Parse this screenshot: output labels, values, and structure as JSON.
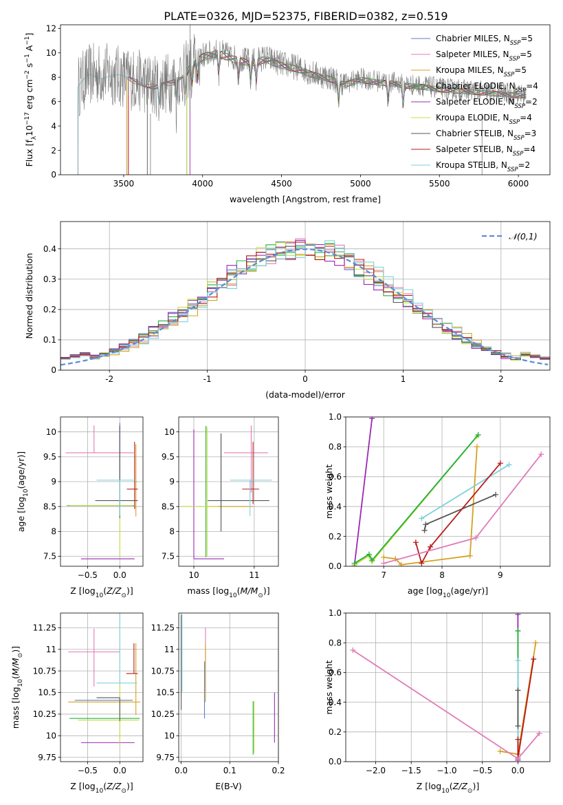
{
  "figure_title": "PLATE=0326, MJD=52375, FIBERID=0382, z=0.519",
  "model_colors": [
    "#5b7fc2",
    "#e07ab8",
    "#d4a020",
    "#20b040",
    "#9a28b4",
    "#cadc40",
    "#555555",
    "#b81a1a",
    "#7ed0dc"
  ],
  "models": [
    {
      "name": "Chabrier MILES",
      "nssp": "5"
    },
    {
      "name": "Salpeter MILES",
      "nssp": "5"
    },
    {
      "name": "Kroupa MILES",
      "nssp": "5"
    },
    {
      "name": "Chabrier ELODIE",
      "nssp": "4"
    },
    {
      "name": "Salpeter ELODIE",
      "nssp": "2"
    },
    {
      "name": "Kroupa ELODIE",
      "nssp": "4"
    },
    {
      "name": "Chabrier STELIB",
      "nssp": "3"
    },
    {
      "name": "Salpeter STELIB",
      "nssp": "4"
    },
    {
      "name": "Kroupa STELIB",
      "nssp": "2"
    }
  ],
  "chart_data": [
    {
      "id": "spectrum",
      "type": "line",
      "xlabel": "wavelength [Angstrom, rest frame]",
      "ylabel": "Flux [f_λ10^-17 erg cm^-2 s^-1 A^-1]",
      "xlim": [
        3100,
        6200
      ],
      "ylim": [
        0,
        12.3
      ],
      "xticks": [
        3500,
        4000,
        4500,
        5000,
        5500,
        6000
      ],
      "yticks": [
        0,
        2,
        4,
        6,
        8,
        10,
        12
      ],
      "legend": "top-right",
      "continuum": [
        [
          3210,
          7.2
        ],
        [
          3280,
          8.2
        ],
        [
          3400,
          8.3
        ],
        [
          3500,
          8.0
        ],
        [
          3600,
          7.7
        ],
        [
          3700,
          7.3
        ],
        [
          3800,
          7.6
        ],
        [
          3900,
          8.6
        ],
        [
          3950,
          9.3
        ],
        [
          4000,
          9.8
        ],
        [
          4100,
          10.1
        ],
        [
          4200,
          9.6
        ],
        [
          4300,
          9.3
        ],
        [
          4400,
          9.6
        ],
        [
          4500,
          9.1
        ],
        [
          4600,
          8.8
        ],
        [
          4700,
          8.3
        ],
        [
          4800,
          8.0
        ],
        [
          4900,
          7.5
        ],
        [
          5000,
          7.9
        ],
        [
          5100,
          7.7
        ],
        [
          5200,
          7.6
        ],
        [
          5300,
          7.4
        ],
        [
          5400,
          7.3
        ],
        [
          5500,
          7.1
        ],
        [
          5600,
          7.0
        ],
        [
          5700,
          6.9
        ],
        [
          5800,
          6.8
        ],
        [
          5900,
          6.7
        ],
        [
          6000,
          6.6
        ],
        [
          6050,
          6.5
        ]
      ],
      "model_starts": [
        3520,
        3530,
        3520,
        3900,
        3920,
        3900,
        3650,
        3530,
        3210
      ]
    },
    {
      "id": "residuals",
      "type": "step",
      "xlabel": "(data-model)/error",
      "ylabel": "Normed distribution",
      "xlim": [
        -2.5,
        2.5
      ],
      "ylim": [
        0,
        0.49
      ],
      "xticks": [
        -2,
        -1,
        0,
        1,
        2
      ],
      "yticks": [
        0,
        0.1,
        0.2,
        0.3,
        0.4
      ],
      "grid": true,
      "legend": "top-right",
      "reference_label": "𝒩(0,1)",
      "reference_color": "#5b8ed6",
      "bin_width": 0.1,
      "reference_curve": "normal(0,1)"
    },
    {
      "id": "age_vs_Z",
      "type": "errorbar",
      "xlabel": "Z [log10(Z/Z⊙)]",
      "ylabel": "age [log10(age/yr)]",
      "xlim": [
        -0.92,
        0.36
      ],
      "ylim": [
        7.3,
        10.3
      ],
      "xticks": [
        -0.5,
        0,
        0.5
      ],
      "xticklabels": [
        "−0.5",
        "0.0",
        ""
      ],
      "yticks": [
        7.5,
        8.0,
        8.5,
        9.0,
        9.5,
        10.0
      ],
      "grid": true,
      "points": [
        {
          "x": 0.0,
          "y": 9.03,
          "xerr": [
            0.0,
            0.0
          ],
          "yerr": [
            0.0,
            1.15
          ],
          "c": 0
        },
        {
          "x": -0.4,
          "y": 9.58,
          "xerr": [
            0.44,
            0.62
          ],
          "yerr": [
            0.0,
            0.55
          ],
          "c": 1
        },
        {
          "x": 0.25,
          "y": 9.0,
          "xerr": [
            0.02,
            0.02
          ],
          "yerr": [
            0.7,
            0.75
          ],
          "c": 2
        },
        {
          "x": -0.6,
          "y": 8.52,
          "xerr": [
            0.22,
            0.82
          ],
          "yerr": [
            0.0,
            0.0
          ],
          "c": 3
        },
        {
          "x": -0.2,
          "y": 7.45,
          "xerr": [
            0.4,
            0.43
          ],
          "yerr": [
            0.0,
            0.0
          ],
          "c": 4
        },
        {
          "x": 0.0,
          "y": 8.52,
          "xerr": [
            0.78,
            0.2
          ],
          "yerr": [
            1.0,
            0.0
          ],
          "c": 5
        },
        {
          "x": 0.0,
          "y": 8.62,
          "xerr": [
            0.38,
            0.28
          ],
          "yerr": [
            0.35,
            1.5
          ],
          "c": 6
        },
        {
          "x": 0.23,
          "y": 8.85,
          "xerr": [
            0.12,
            0.05
          ],
          "yerr": [
            0.4,
            0.95
          ],
          "c": 7
        },
        {
          "x": 0.0,
          "y": 9.03,
          "xerr": [
            0.36,
            0.26
          ],
          "yerr": [
            0.72,
            0.0
          ],
          "c": 8
        }
      ]
    },
    {
      "id": "age_vs_mass",
      "type": "errorbar",
      "xlabel": "mass [log10(M/M⊙)]",
      "ylabel": "",
      "xlim": [
        9.75,
        11.4
      ],
      "ylim": [
        7.3,
        10.3
      ],
      "xticks": [
        10,
        11
      ],
      "yticks": [
        7.5,
        8.0,
        8.5,
        9.0,
        9.5,
        10.0
      ],
      "grid": true,
      "points": [
        {
          "x": 10.45,
          "y": 8.5,
          "xerr": [
            0.0,
            0.0
          ],
          "yerr": [
            0.05,
            1.45
          ],
          "c": 0
        },
        {
          "x": 10.95,
          "y": 9.58,
          "xerr": [
            0.45,
            0.28
          ],
          "yerr": [
            0.8,
            0.55
          ],
          "c": 1
        },
        {
          "x": 10.48,
          "y": 8.5,
          "xerr": [
            0.27,
            0.5
          ],
          "yerr": [
            0.0,
            0.0
          ],
          "c": 2
        },
        {
          "x": 10.2,
          "y": 8.5,
          "xerr": [
            0.0,
            0.0
          ],
          "yerr": [
            1.02,
            1.62
          ],
          "c": 3
        },
        {
          "x": 10.0,
          "y": 7.45,
          "xerr": [
            0.0,
            0.5
          ],
          "yerr": [
            0.0,
            2.6
          ],
          "c": 4
        },
        {
          "x": 10.22,
          "y": 8.5,
          "xerr": [
            0.42,
            0.18
          ],
          "yerr": [
            1.0,
            1.6
          ],
          "c": 5
        },
        {
          "x": 10.45,
          "y": 8.62,
          "xerr": [
            0.22,
            0.8
          ],
          "yerr": [
            0.62,
            1.35
          ],
          "c": 6
        },
        {
          "x": 10.98,
          "y": 8.85,
          "xerr": [
            0.18,
            0.1
          ],
          "yerr": [
            0.3,
            0.95
          ],
          "c": 7
        },
        {
          "x": 10.93,
          "y": 9.03,
          "xerr": [
            0.33,
            0.36
          ],
          "yerr": [
            0.72,
            0.0
          ],
          "c": 8
        }
      ]
    },
    {
      "id": "weight_vs_age",
      "type": "line",
      "xlabel": "age [log10(age/yr)]",
      "ylabel": "mass weight",
      "xlim": [
        6.35,
        9.85
      ],
      "ylim": [
        0,
        1
      ],
      "xticks": [
        7,
        8,
        9
      ],
      "yticks": [
        0,
        0.2,
        0.4,
        0.6,
        0.8,
        1.0
      ],
      "yticklabels": [
        "0.0",
        "0.2",
        "0.4",
        "0.6",
        "0.8",
        "1.0"
      ],
      "grid": true,
      "series": [
        {
          "c": 4,
          "points": [
            [
              6.5,
              0.0
            ],
            [
              6.5,
              0.01
            ],
            [
              6.8,
              0.99
            ]
          ]
        },
        {
          "c": 5,
          "points": [
            [
              6.5,
              0.01
            ],
            [
              6.75,
              0.07
            ],
            [
              6.8,
              0.03
            ],
            [
              8.6,
              0.87
            ]
          ]
        },
        {
          "c": 3,
          "points": [
            [
              6.5,
              0.02
            ],
            [
              6.75,
              0.08
            ],
            [
              6.8,
              0.04
            ],
            [
              8.62,
              0.88
            ]
          ]
        },
        {
          "c": 2,
          "points": [
            [
              7.0,
              0.06
            ],
            [
              7.2,
              0.05
            ],
            [
              7.3,
              0.01
            ],
            [
              8.48,
              0.07
            ],
            [
              8.6,
              0.8
            ]
          ]
        },
        {
          "c": 8,
          "points": [
            [
              7.65,
              0.32
            ],
            [
              9.15,
              0.68
            ]
          ]
        },
        {
          "c": 6,
          "points": [
            [
              7.7,
              0.24
            ],
            [
              7.72,
              0.28
            ],
            [
              8.92,
              0.48
            ]
          ]
        },
        {
          "c": 7,
          "points": [
            [
              7.55,
              0.16
            ],
            [
              7.65,
              0.02
            ],
            [
              7.8,
              0.13
            ],
            [
              9.0,
              0.69
            ]
          ]
        },
        {
          "c": 1,
          "points": [
            [
              7.0,
              0.02
            ],
            [
              8.58,
              0.19
            ],
            [
              9.7,
              0.75
            ]
          ]
        }
      ]
    },
    {
      "id": "mass_vs_Z",
      "type": "errorbar",
      "xlabel": "Z [log10(Z/Z⊙)]",
      "ylabel": "mass [log10(M/M⊙)]",
      "xlim": [
        -0.92,
        0.36
      ],
      "ylim": [
        9.7,
        11.42
      ],
      "xticks": [
        -0.5,
        0,
        0.5
      ],
      "xticklabels": [
        "−0.5",
        "0.0",
        ""
      ],
      "yticks": [
        9.75,
        10.0,
        10.25,
        10.5,
        10.75,
        11.0,
        11.25
      ],
      "grid": true,
      "points": [
        {
          "x": -0.1,
          "y": 10.41,
          "xerr": [
            0.6,
            0.3
          ],
          "yerr": [
            0.0,
            0.0
          ],
          "c": 0
        },
        {
          "x": -0.4,
          "y": 10.97,
          "xerr": [
            0.4,
            0.4
          ],
          "yerr": [
            0.4,
            0.27
          ],
          "c": 1
        },
        {
          "x": 0.25,
          "y": 10.39,
          "xerr": [
            1.05,
            0.07
          ],
          "yerr": [
            0.15,
            0.68
          ],
          "c": 2
        },
        {
          "x": -0.45,
          "y": 10.2,
          "xerr": [
            0.33,
            0.76
          ],
          "yerr": [
            0.0,
            0.0
          ],
          "c": 3
        },
        {
          "x": -0.2,
          "y": 9.92,
          "xerr": [
            0.4,
            0.43
          ],
          "yerr": [
            0.0,
            0.0
          ],
          "c": 4
        },
        {
          "x": 0.0,
          "y": 10.18,
          "xerr": [
            0.65,
            0.3
          ],
          "yerr": [
            0.28,
            0.42
          ],
          "c": 5
        },
        {
          "x": 0.0,
          "y": 10.44,
          "xerr": [
            0.36,
            0.0
          ],
          "yerr": [
            0.27,
            0.0
          ],
          "c": 6
        },
        {
          "x": 0.22,
          "y": 10.72,
          "xerr": [
            0.12,
            0.06
          ],
          "yerr": [
            0.0,
            0.35
          ],
          "c": 7
        },
        {
          "x": 0.0,
          "y": 10.61,
          "xerr": [
            0.36,
            0.27
          ],
          "yerr": [
            0.0,
            0.82
          ],
          "c": 8
        }
      ]
    },
    {
      "id": "mass_vs_EBV",
      "type": "errorbar",
      "xlabel": "E(B-V)",
      "ylabel": "",
      "xlim": [
        -0.005,
        0.2
      ],
      "ylim": [
        9.7,
        11.42
      ],
      "xticks": [
        0.0,
        0.1,
        0.2
      ],
      "xticklabels": [
        "0.0",
        "0.1",
        "0.2"
      ],
      "yticks": [
        9.75,
        10.0,
        10.25,
        10.5,
        10.75,
        11.0,
        11.25
      ],
      "grid": true,
      "points": [
        {
          "x": 0.048,
          "y": 10.41,
          "xerr": [
            0,
            0
          ],
          "yerr": [
            0.21,
            0.45
          ],
          "c": 0
        },
        {
          "x": 0.05,
          "y": 10.97,
          "xerr": [
            0,
            0
          ],
          "yerr": [
            0.45,
            0.28
          ],
          "c": 1
        },
        {
          "x": 0.05,
          "y": 10.6,
          "xerr": [
            0,
            0
          ],
          "yerr": [
            0.21,
            0.47
          ],
          "c": 2
        },
        {
          "x": 0.148,
          "y": 10.1,
          "xerr": [
            0,
            0
          ],
          "yerr": [
            0.32,
            0.3
          ],
          "c": 3
        },
        {
          "x": 0.192,
          "y": 10.2,
          "xerr": [
            0,
            0
          ],
          "yerr": [
            0.28,
            0.3
          ],
          "c": 4
        },
        {
          "x": 0.15,
          "y": 10.1,
          "xerr": [
            0,
            0
          ],
          "yerr": [
            0.3,
            0.3
          ],
          "c": 5
        },
        {
          "x": 0.0,
          "y": 10.6,
          "xerr": [
            0,
            0
          ],
          "yerr": [
            0.3,
            0.8
          ],
          "c": 6
        },
        {
          "x": 0.049,
          "y": 10.72,
          "xerr": [
            0,
            0
          ],
          "yerr": [
            0.0,
            0.0
          ],
          "c": 7
        },
        {
          "x": 0.002,
          "y": 10.61,
          "xerr": [
            0,
            0
          ],
          "yerr": [
            0.1,
            0.8
          ],
          "c": 8
        }
      ]
    },
    {
      "id": "weight_vs_Z",
      "type": "line",
      "xlabel": "Z [log10(Z/Z⊙)]",
      "ylabel": "mass weight",
      "xlim": [
        -2.42,
        0.45
      ],
      "ylim": [
        0,
        1
      ],
      "xticks": [
        -2.0,
        -1.5,
        -1.0,
        -0.5,
        0.0
      ],
      "xticklabels": [
        "−2.0",
        "−1.5",
        "−1.0",
        "−0.5",
        "0.0"
      ],
      "yticks": [
        0,
        0.2,
        0.4,
        0.6,
        0.8,
        1.0
      ],
      "yticklabels": [
        "0.0",
        "0.2",
        "0.4",
        "0.6",
        "0.8",
        "1.0"
      ],
      "grid": true,
      "series": [
        {
          "c": 4,
          "points": [
            [
              0.0,
              0.01
            ],
            [
              0.0,
              0.99
            ]
          ]
        },
        {
          "c": 5,
          "points": [
            [
              0.0,
              0.02
            ],
            [
              0.0,
              0.88
            ]
          ]
        },
        {
          "c": 3,
          "points": [
            [
              0.0,
              0.03
            ],
            [
              0.0,
              0.88
            ]
          ]
        },
        {
          "c": 8,
          "points": [
            [
              0.0,
              0.03
            ],
            [
              0.0,
              0.68
            ]
          ]
        },
        {
          "c": 6,
          "points": [
            [
              0.0,
              0.24
            ],
            [
              0.0,
              0.48
            ]
          ]
        },
        {
          "c": 2,
          "points": [
            [
              -0.25,
              0.07
            ],
            [
              0.0,
              0.05
            ],
            [
              0.25,
              0.8
            ]
          ]
        },
        {
          "c": 7,
          "points": [
            [
              0.0,
              0.15
            ],
            [
              0.0,
              0.02
            ],
            [
              0.22,
              0.69
            ]
          ]
        },
        {
          "c": 1,
          "points": [
            [
              -2.32,
              0.75
            ],
            [
              0.0,
              0.02
            ],
            [
              0.3,
              0.19
            ]
          ]
        }
      ]
    }
  ]
}
